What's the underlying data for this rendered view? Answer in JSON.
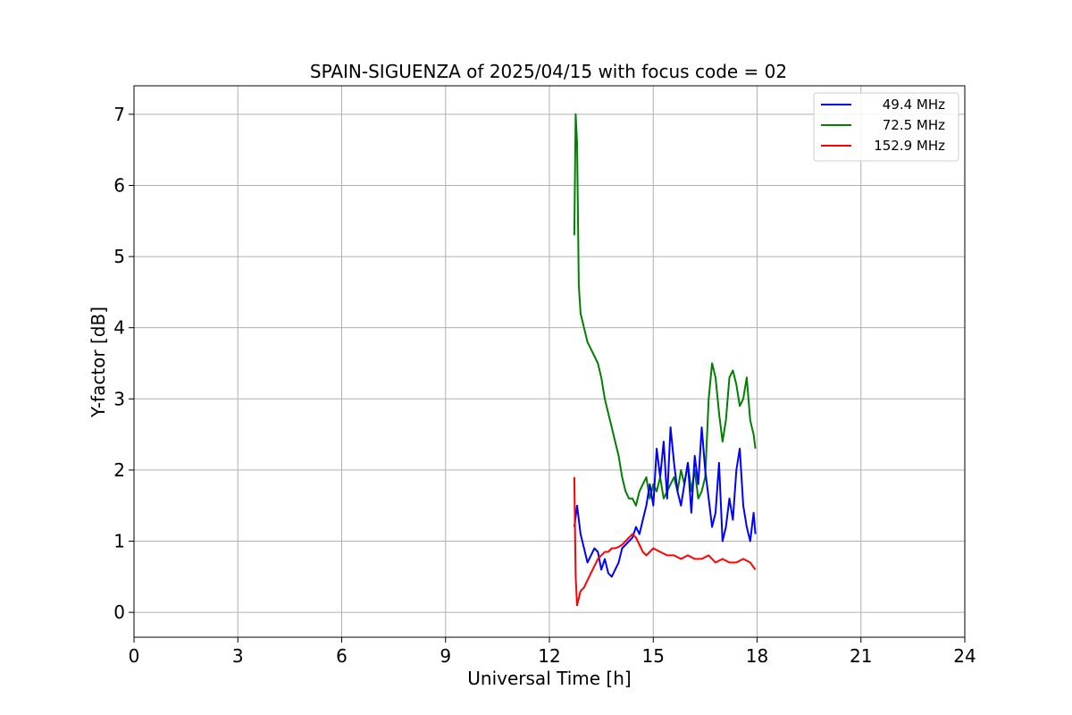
{
  "chart_data": {
    "type": "line",
    "title": "SPAIN-SIGUENZA of 2025/04/15 with focus code = 02",
    "xlabel": "Universal Time [h]",
    "ylabel": "Y-factor [dB]",
    "xlim": [
      0,
      24
    ],
    "ylim": [
      -0.35,
      7.4
    ],
    "xticks": [
      0,
      3,
      6,
      9,
      12,
      15,
      18,
      21,
      24
    ],
    "yticks": [
      0,
      1,
      2,
      3,
      4,
      5,
      6,
      7
    ],
    "grid": true,
    "legend_position": "top-right",
    "series": [
      {
        "name": "49.4 MHz",
        "color": "#0000ff",
        "x": [
          12.72,
          12.8,
          12.9,
          13.0,
          13.1,
          13.2,
          13.3,
          13.4,
          13.5,
          13.6,
          13.7,
          13.8,
          13.9,
          14.0,
          14.1,
          14.2,
          14.3,
          14.4,
          14.5,
          14.6,
          14.7,
          14.8,
          14.9,
          15.0,
          15.1,
          15.2,
          15.3,
          15.4,
          15.5,
          15.6,
          15.7,
          15.8,
          15.9,
          16.0,
          16.1,
          16.2,
          16.3,
          16.4,
          16.5,
          16.6,
          16.7,
          16.8,
          16.9,
          17.0,
          17.1,
          17.2,
          17.3,
          17.4,
          17.5,
          17.6,
          17.7,
          17.8,
          17.9,
          17.95
        ],
        "y": [
          1.2,
          1.5,
          1.1,
          0.9,
          0.7,
          0.8,
          0.9,
          0.85,
          0.6,
          0.75,
          0.55,
          0.5,
          0.6,
          0.7,
          0.9,
          0.95,
          1.0,
          1.05,
          1.2,
          1.1,
          1.3,
          1.5,
          1.8,
          1.5,
          2.3,
          1.9,
          2.4,
          1.6,
          2.6,
          2.1,
          1.7,
          1.5,
          1.8,
          2.1,
          1.4,
          2.2,
          1.8,
          2.6,
          2.0,
          1.6,
          1.2,
          1.4,
          2.1,
          1.0,
          1.2,
          1.6,
          1.3,
          2.0,
          2.3,
          1.5,
          1.2,
          1.0,
          1.4,
          1.1
        ]
      },
      {
        "name": "72.5 MHz",
        "color": "#008000",
        "x": [
          12.72,
          12.76,
          12.8,
          12.85,
          12.9,
          13.0,
          13.1,
          13.2,
          13.3,
          13.4,
          13.5,
          13.6,
          13.7,
          13.8,
          13.9,
          14.0,
          14.1,
          14.2,
          14.3,
          14.4,
          14.5,
          14.6,
          14.7,
          14.8,
          14.9,
          15.0,
          15.1,
          15.2,
          15.3,
          15.4,
          15.5,
          15.6,
          15.7,
          15.8,
          15.9,
          16.0,
          16.1,
          16.2,
          16.3,
          16.4,
          16.5,
          16.6,
          16.7,
          16.8,
          16.9,
          17.0,
          17.1,
          17.2,
          17.3,
          17.4,
          17.5,
          17.6,
          17.7,
          17.8,
          17.9,
          17.95
        ],
        "y": [
          5.3,
          7.0,
          6.6,
          4.6,
          4.2,
          4.0,
          3.8,
          3.7,
          3.6,
          3.5,
          3.3,
          3.0,
          2.8,
          2.6,
          2.4,
          2.2,
          1.9,
          1.7,
          1.6,
          1.6,
          1.5,
          1.7,
          1.8,
          1.9,
          1.6,
          1.8,
          1.7,
          1.9,
          1.6,
          1.7,
          1.8,
          1.9,
          1.7,
          2.0,
          1.8,
          2.1,
          1.7,
          2.0,
          1.6,
          1.7,
          1.9,
          3.0,
          3.5,
          3.3,
          2.8,
          2.4,
          2.7,
          3.3,
          3.4,
          3.2,
          2.9,
          3.0,
          3.3,
          2.7,
          2.5,
          2.3
        ]
      },
      {
        "name": "152.9 MHz",
        "color": "#ff0000",
        "x": [
          12.72,
          12.76,
          12.8,
          12.9,
          13.0,
          13.1,
          13.2,
          13.3,
          13.4,
          13.5,
          13.6,
          13.7,
          13.8,
          13.9,
          14.0,
          14.1,
          14.2,
          14.3,
          14.4,
          14.5,
          14.6,
          14.7,
          14.8,
          14.9,
          15.0,
          15.2,
          15.4,
          15.6,
          15.8,
          16.0,
          16.2,
          16.4,
          16.6,
          16.8,
          17.0,
          17.2,
          17.4,
          17.6,
          17.8,
          17.95
        ],
        "y": [
          1.9,
          0.5,
          0.1,
          0.3,
          0.35,
          0.45,
          0.55,
          0.65,
          0.75,
          0.8,
          0.85,
          0.85,
          0.9,
          0.9,
          0.92,
          0.95,
          1.0,
          1.05,
          1.1,
          1.05,
          0.95,
          0.85,
          0.8,
          0.85,
          0.9,
          0.85,
          0.8,
          0.8,
          0.75,
          0.8,
          0.75,
          0.75,
          0.8,
          0.7,
          0.75,
          0.7,
          0.7,
          0.75,
          0.7,
          0.6
        ]
      }
    ]
  }
}
